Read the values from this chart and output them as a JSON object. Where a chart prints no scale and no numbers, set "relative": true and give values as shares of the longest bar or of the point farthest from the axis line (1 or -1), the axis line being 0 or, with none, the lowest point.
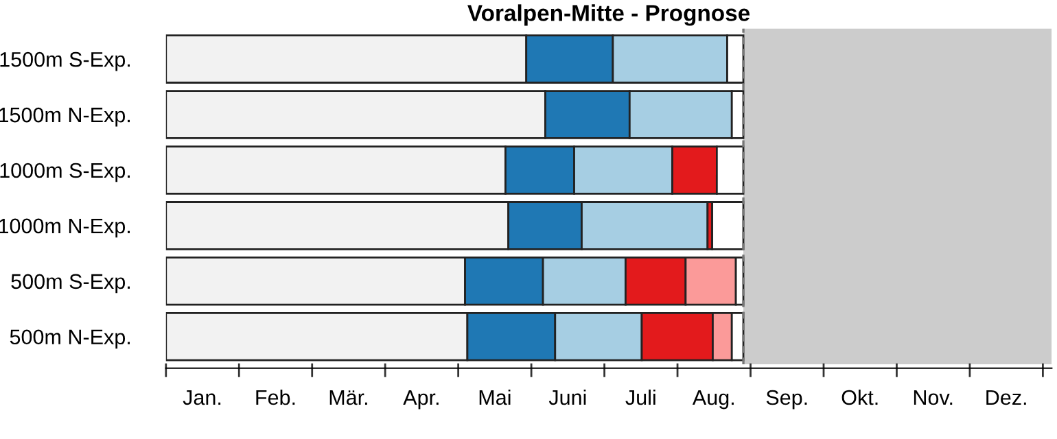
{
  "chart_data": {
    "type": "bar",
    "orientation": "horizontal",
    "stacked": true,
    "relative": true,
    "title": "Voralpen-Mitte - Prognose",
    "categories": [
      "1500m S-Exp.",
      "1500m N-Exp.",
      "1000m S-Exp.",
      "1000m N-Exp.",
      "500m S-Exp.",
      "500m N-Exp."
    ],
    "series": [
      {
        "color": "#f2f2f2",
        "values": [
          0.624,
          0.657,
          0.588,
          0.593,
          0.518,
          0.522
        ]
      },
      {
        "color": "#1f78b4",
        "values": [
          0.15,
          0.146,
          0.119,
          0.127,
          0.135,
          0.152
        ]
      },
      {
        "color": "#a6cee3",
        "values": [
          0.198,
          0.177,
          0.17,
          0.218,
          0.143,
          0.15
        ]
      },
      {
        "color": "#e31a1c",
        "values": [
          null,
          null,
          0.077,
          0.008,
          0.104,
          0.123
        ]
      },
      {
        "color": "#fb9a99",
        "values": [
          null,
          null,
          null,
          null,
          0.087,
          0.033
        ]
      },
      {
        "color": "#ffffff",
        "values": [
          0.028,
          0.02,
          0.046,
          0.054,
          0.013,
          0.02
        ]
      }
    ],
    "annotations": [
      "Jan.",
      "Feb.",
      "Mär.",
      "Apr.",
      "Mai",
      "Juni",
      "Juli",
      "Aug.",
      "Sep.",
      "Okt.",
      "Nov.",
      "Dez."
    ],
    "ref_lines": [
      {
        "axis": "x",
        "value": 1,
        "color": "#777777",
        "line_style": "dashed"
      }
    ],
    "bands": [
      {
        "axis": "x",
        "from": 1,
        "to": 1.534,
        "color": "#cccccc"
      }
    ],
    "grid": false,
    "legend": false
  }
}
